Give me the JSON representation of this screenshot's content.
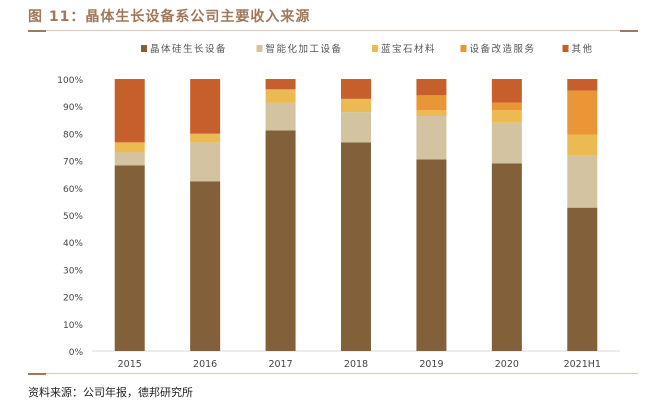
{
  "header": {
    "title": "图 11：晶体生长设备系公司主要收入来源"
  },
  "footer": {
    "source": "资料来源：公司年报，德邦研究所"
  },
  "chart_data": {
    "type": "bar",
    "stacked": true,
    "title": "",
    "xlabel": "",
    "ylabel": "",
    "ylim": [
      0,
      100
    ],
    "yticks": [
      "0%",
      "10%",
      "20%",
      "30%",
      "40%",
      "50%",
      "60%",
      "70%",
      "80%",
      "90%",
      "100%"
    ],
    "grid": false,
    "legend_position": "top",
    "categories": [
      "2015",
      "2016",
      "2017",
      "2018",
      "2019",
      "2020",
      "2021H1"
    ],
    "series": [
      {
        "name": "晶体硅生长设备",
        "color": "#82613a",
        "values": [
          68.2,
          62.4,
          81.1,
          76.7,
          70.4,
          69.0,
          52.7
        ]
      },
      {
        "name": "智能化加工设备",
        "color": "#d3c3a0",
        "values": [
          4.8,
          14.3,
          10.1,
          11.1,
          16.0,
          14.9,
          19.1
        ]
      },
      {
        "name": "蓝宝石材料",
        "color": "#ebba53",
        "values": [
          3.7,
          3.2,
          5.0,
          4.9,
          2.2,
          4.7,
          7.7
        ]
      },
      {
        "name": "设备改造服务",
        "color": "#e99637",
        "values": [
          0,
          0,
          0,
          0,
          5.4,
          2.7,
          16.2
        ]
      },
      {
        "name": "其他",
        "color": "#c65f2c",
        "values": [
          23.3,
          20.1,
          3.8,
          7.3,
          6.0,
          8.7,
          4.3
        ]
      }
    ]
  }
}
